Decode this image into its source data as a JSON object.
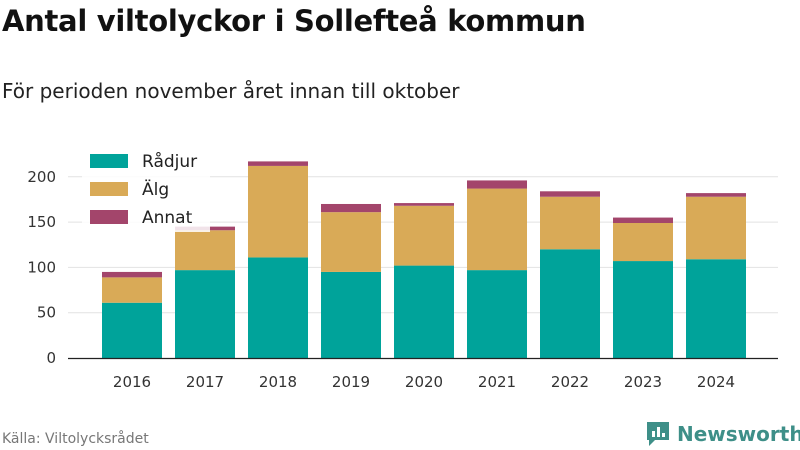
{
  "header": {
    "title": "Antal viltolyckor i Sollefteå kommun",
    "subtitle": "För perioden november året innan till oktober"
  },
  "footer": {
    "source": "Källa: Viltolycksrådet",
    "brand": "Newsworthy"
  },
  "colors": {
    "Rådjur": "#00a39a",
    "Älg": "#d9aa57",
    "Annat": "#a3456b",
    "grid": "#e2e2e2",
    "axis": "#222222",
    "brand": "#3e8f88"
  },
  "icons": {
    "brand": "newsworthy-logo-icon"
  },
  "chart_data": {
    "type": "bar",
    "stacked": true,
    "categories": [
      "2016",
      "2017",
      "2018",
      "2019",
      "2020",
      "2021",
      "2022",
      "2023",
      "2024"
    ],
    "series": [
      {
        "name": "Rådjur",
        "values": [
          61,
          97,
          111,
          95,
          102,
          97,
          120,
          107,
          109
        ]
      },
      {
        "name": "Älg",
        "values": [
          28,
          44,
          101,
          66,
          66,
          90,
          58,
          42,
          69
        ]
      },
      {
        "name": "Annat",
        "values": [
          6,
          4,
          5,
          9,
          3,
          9,
          6,
          6,
          4
        ]
      }
    ],
    "yticks": [
      0,
      50,
      100,
      150,
      200
    ],
    "ylim": [
      0,
      220
    ],
    "grid": true,
    "legend": "top-left"
  }
}
